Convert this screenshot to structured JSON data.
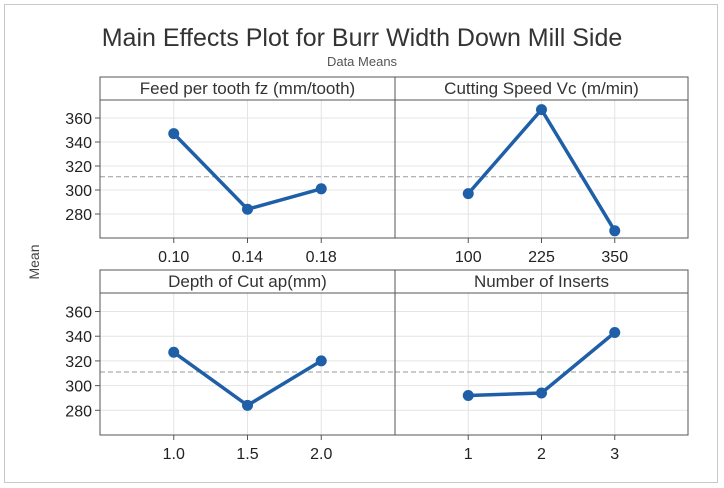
{
  "chart_data": {
    "type": "line",
    "title": "Main Effects Plot for Burr Width Down Mill Side",
    "subtitle": "Data Means",
    "ylabel": "Mean",
    "ylim": [
      260,
      375
    ],
    "yticks": [
      280,
      300,
      320,
      340,
      360
    ],
    "grand_mean": 311,
    "line_color": "#1f5fa8",
    "panels": [
      {
        "name": "Feed per tooth fz (mm/tooth)",
        "categories": [
          "0.10",
          "0.14",
          "0.18"
        ],
        "values": [
          347,
          284,
          301
        ]
      },
      {
        "name": "Cutting Speed Vc (m/min)",
        "categories": [
          "100",
          "225",
          "350"
        ],
        "values": [
          297,
          367,
          266
        ]
      },
      {
        "name": "Depth of Cut ap(mm)",
        "categories": [
          "1.0",
          "1.5",
          "2.0"
        ],
        "values": [
          327,
          284,
          320
        ]
      },
      {
        "name": "Number of Inserts",
        "categories": [
          "1",
          "2",
          "3"
        ],
        "values": [
          292,
          294,
          343
        ]
      }
    ]
  }
}
